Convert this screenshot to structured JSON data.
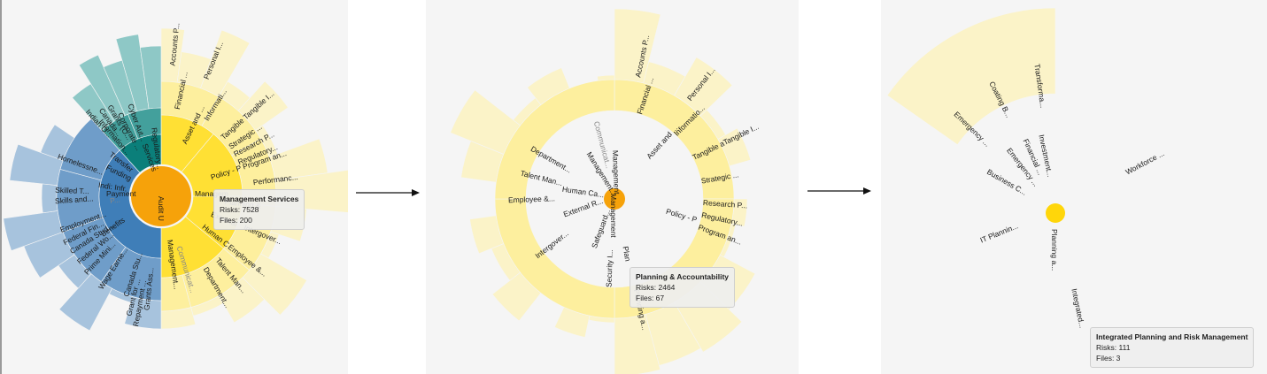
{
  "colors": {
    "yellow_center": "#ffd60a",
    "yellow_ring1": "#ffe034",
    "yellow_ring2": "#ffe870",
    "yellow_ring3": "#fdef9e",
    "yellow_ring4": "#fbf3c8",
    "blue_center": "#3f7eb8",
    "blue_ring": "#6f9dc9",
    "blue_outer": "#a7c3dd",
    "teal_center": "#0b7f7a",
    "teal_ring": "#43a09c",
    "teal_outer": "#8ec8c6",
    "hub": "#f6a20a"
  },
  "panel1": {
    "center_label": "Audit U",
    "labels": [
      "Accounts P...",
      "Personal I...",
      "Financial ...",
      "Informati...",
      "Asset and ...",
      "Tangible Tangible I...",
      "Strategic ...",
      "Research P...",
      "Regulatory...",
      "Policy - P Program an...",
      "Managem",
      "Planning &",
      "Performanc...",
      "External",
      "Intergover...",
      "Human C",
      "Employee &...",
      "Talent Man...",
      "Management...",
      "Department...",
      "Communicat...",
      "Payment",
      "P...",
      "Benefits",
      "Canada Stu...",
      "Employment...",
      "Federal Fin...",
      "Canada Stud...",
      "Federal Wo...",
      "Prime Mini...",
      "Grants Ass...",
      "Wage Earne...",
      "Repayment ...",
      "Grant for ...",
      "Indi: Infr.",
      "Skills and...",
      "Skilled T...",
      "Homelessne...",
      "Funding",
      "Transfer",
      "Services",
      "Corporate ...",
      "Cyber Aut...",
      "Regulatory...",
      "Information...",
      "Indian O...",
      "Canada...",
      "Grants (O..."
    ],
    "tooltip": {
      "title": "Management Services",
      "risks": "Risks: 7528",
      "files": "Files: 200"
    }
  },
  "panel2": {
    "center_label": "Management",
    "labels": [
      "Accounts P...",
      "Personal I...",
      "Financial ...",
      "Informatio...",
      "Asset and ...",
      "Tangible aTangible I...",
      "Strategic ...",
      "Research P...",
      "Regulatory...",
      "Policy - P",
      "Program an...",
      "Management",
      "Communicat...",
      "Management...",
      "Department...",
      "Talent Man...",
      "Human Ca...",
      "Employee &...",
      "External R...",
      "Intergover...",
      "Safeguard...",
      "Security I...",
      "Planning a...",
      "Plan"
    ],
    "tooltip": {
      "title": "Planning & Accountability",
      "risks": "Risks: 2464",
      "files": "Files: 67"
    }
  },
  "panel3": {
    "center_label": "Planning a...",
    "labels": [
      "Transforma...",
      "Coating B...",
      "Emergency ...",
      "Investment...",
      "Financial ...",
      "Emergency ...",
      "Business C...",
      "Workforce ...",
      "IT Plannin...",
      "Integrated..."
    ],
    "tooltip": {
      "title": "Integrated Planning and Risk Management",
      "risks": "Risks: 111",
      "files": "Files: 3"
    }
  }
}
